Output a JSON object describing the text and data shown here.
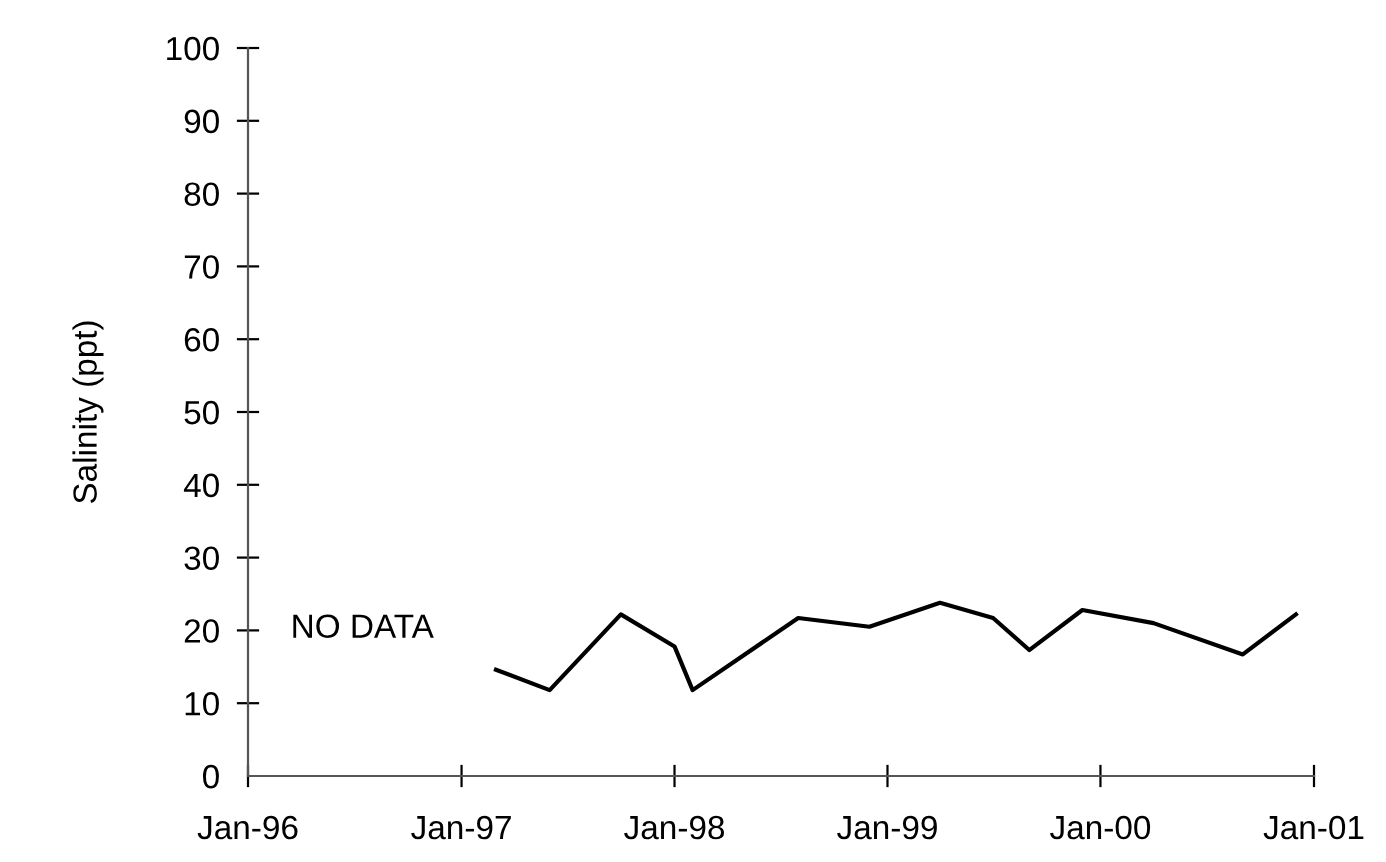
{
  "chart_data": {
    "type": "line",
    "ylabel": "Salinity (ppt)",
    "x": [
      "1997-03",
      "1997-06",
      "1997-10",
      "1998-01",
      "1998-02",
      "1998-08",
      "1998-12",
      "1999-04",
      "1999-07",
      "1999-09",
      "1999-12",
      "2000-04",
      "2000-09",
      "2000-12"
    ],
    "series": [
      {
        "color": "#000000",
        "values": [
          14.6,
          11.8,
          22.2,
          17.8,
          11.8,
          21.7,
          20.5,
          23.8,
          21.7,
          17.3,
          22.8,
          21.0,
          16.7,
          22.2
        ]
      }
    ],
    "xlim": [
      "1996-01-01",
      "2001-01-01"
    ],
    "xticks": [
      {
        "value": "1996-01-01",
        "label": "Jan-96"
      },
      {
        "value": "1997-01-01",
        "label": "Jan-97"
      },
      {
        "value": "1998-01-01",
        "label": "Jan-98"
      },
      {
        "value": "1999-01-01",
        "label": "Jan-99"
      },
      {
        "value": "2000-01-01",
        "label": "Jan-00"
      },
      {
        "value": "2001-01-01",
        "label": "Jan-01"
      }
    ],
    "ylim": [
      0,
      100
    ],
    "yticks": [
      0,
      10,
      20,
      30,
      40,
      50,
      60,
      70,
      80,
      90,
      100
    ],
    "annotations": [
      "NO DATA"
    ],
    "grid": false,
    "legend": false,
    "marker": "none",
    "line_style": "solid"
  }
}
